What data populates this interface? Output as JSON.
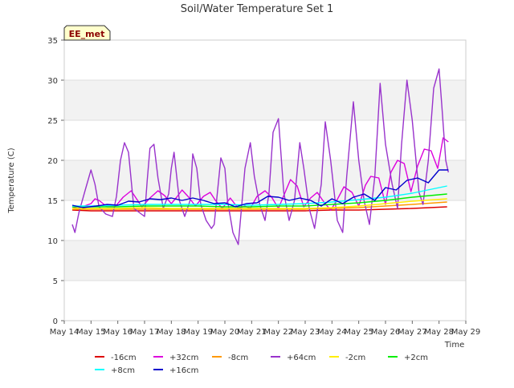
{
  "chart_data": {
    "type": "line",
    "title": "Soil/Water Temperature Set 1",
    "xlabel": "Time",
    "ylabel": "Temperature (C)",
    "station_label": "EE_met",
    "x_ticks": [
      "May 14",
      "May 15",
      "May 16",
      "May 17",
      "May 18",
      "May 19",
      "May 20",
      "May 21",
      "May 22",
      "May 23",
      "May 24",
      "May 25",
      "May 26",
      "May 27",
      "May 28",
      "May 29"
    ],
    "xlim": [
      0,
      15
    ],
    "ylim": [
      0,
      35
    ],
    "y_ticks": [
      0,
      5,
      10,
      15,
      20,
      25,
      30,
      35
    ],
    "grid": "horizontal banded",
    "legend_position": "bottom",
    "series": [
      {
        "name": "-16cm",
        "color": "#dd0000",
        "x": [
          0.3,
          1,
          2,
          3,
          4,
          5,
          6,
          7,
          8,
          9,
          10,
          11,
          12,
          13,
          14.3
        ],
        "y": [
          13.8,
          13.7,
          13.7,
          13.7,
          13.7,
          13.7,
          13.7,
          13.7,
          13.7,
          13.7,
          13.8,
          13.8,
          13.9,
          14.0,
          14.2
        ]
      },
      {
        "name": "+32cm",
        "color": "#dd00dd",
        "x": [
          0.3,
          0.5,
          0.75,
          1,
          1.15,
          1.3,
          1.6,
          1.9,
          2.2,
          2.5,
          2.7,
          2.9,
          3.2,
          3.5,
          3.75,
          4,
          4.2,
          4.4,
          4.65,
          4.9,
          5.2,
          5.45,
          5.65,
          5.9,
          6.2,
          6.5,
          6.75,
          6.95,
          7.2,
          7.5,
          7.75,
          8,
          8.2,
          8.45,
          8.7,
          8.95,
          9.2,
          9.45,
          9.7,
          9.95,
          10.15,
          10.45,
          10.75,
          11,
          11.25,
          11.45,
          11.75,
          12,
          12.2,
          12.45,
          12.7,
          12.95,
          13.2,
          13.45,
          13.7,
          13.95,
          14.15,
          14.35
        ],
        "y": [
          14.2,
          14.0,
          14.3,
          14.6,
          15.2,
          15.0,
          14.2,
          14.2,
          15.4,
          16.2,
          15.2,
          14.2,
          15.3,
          16.2,
          15.6,
          14.6,
          15.4,
          16.3,
          15.4,
          14.3,
          15.5,
          16.0,
          15.0,
          14.0,
          15.3,
          14.0,
          14.3,
          14.0,
          15.5,
          16.2,
          15.4,
          14.0,
          15.6,
          17.6,
          16.8,
          14.2,
          15.3,
          16.0,
          14.8,
          13.8,
          14.8,
          16.7,
          16.0,
          14.3,
          16.9,
          18.0,
          17.8,
          14.5,
          18.5,
          20.0,
          19.6,
          16.1,
          19.3,
          21.4,
          21.2,
          19.0,
          22.8,
          22.3
        ]
      },
      {
        "name": "-8cm",
        "color": "#ff9900",
        "x": [
          0.3,
          1,
          2,
          3,
          4,
          5,
          6,
          7,
          8,
          9,
          10,
          11,
          12,
          13,
          14.3
        ],
        "y": [
          13.9,
          13.9,
          13.9,
          13.9,
          13.9,
          13.9,
          13.9,
          13.9,
          13.9,
          13.9,
          14.0,
          14.1,
          14.3,
          14.5,
          14.8
        ]
      },
      {
        "name": "+64cm",
        "color": "#9933cc",
        "x": [
          0.3,
          0.4,
          0.55,
          0.8,
          1,
          1.15,
          1.3,
          1.55,
          1.8,
          1.95,
          2.1,
          2.25,
          2.4,
          2.6,
          2.8,
          3.0,
          3.1,
          3.2,
          3.35,
          3.5,
          3.7,
          3.9,
          4.0,
          4.1,
          4.3,
          4.5,
          4.7,
          4.8,
          4.95,
          5.1,
          5.3,
          5.5,
          5.6,
          5.75,
          5.85,
          6.0,
          6.1,
          6.3,
          6.5,
          6.75,
          6.95,
          7.1,
          7.3,
          7.5,
          7.65,
          7.8,
          8.0,
          8.2,
          8.4,
          8.6,
          8.8,
          8.95,
          9.15,
          9.35,
          9.6,
          9.75,
          9.95,
          10.2,
          10.4,
          10.55,
          10.8,
          11.0,
          11.2,
          11.4,
          11.6,
          11.8,
          12.0,
          12.25,
          12.45,
          12.6,
          12.8,
          13.0,
          13.25,
          13.4,
          13.6,
          13.8,
          14.0,
          14.1,
          14.25,
          14.35
        ],
        "y": [
          12.0,
          11.0,
          13.5,
          16.5,
          18.8,
          17.0,
          14.2,
          13.3,
          13.0,
          15.5,
          20.0,
          22.2,
          21.0,
          14.0,
          13.5,
          13.0,
          17.5,
          21.5,
          22.0,
          17.8,
          14.0,
          15.8,
          19.0,
          21.0,
          15.0,
          13.0,
          15.0,
          20.8,
          19.0,
          14.5,
          12.5,
          11.5,
          12.0,
          17.0,
          20.3,
          19.0,
          15.0,
          11.0,
          9.5,
          19.0,
          22.2,
          18.0,
          14.5,
          12.5,
          16.0,
          23.5,
          25.2,
          16.0,
          12.5,
          15.0,
          22.2,
          19.0,
          14.0,
          11.5,
          17.0,
          24.8,
          20.0,
          12.5,
          11.0,
          18.0,
          27.3,
          20.0,
          15.0,
          12.0,
          18.0,
          29.6,
          22.0,
          17.0,
          14.0,
          22.0,
          30.0,
          25.0,
          16.0,
          14.5,
          20.0,
          29.0,
          31.4,
          27.0,
          20.0,
          18.5
        ]
      },
      {
        "name": "-2cm",
        "color": "#ffee00",
        "x": [
          0.3,
          1,
          2,
          3,
          4,
          5,
          6,
          7,
          8,
          9,
          10,
          11,
          12,
          13,
          14.3
        ],
        "y": [
          14.0,
          14.0,
          14.0,
          14.1,
          14.0,
          14.0,
          14.0,
          14.0,
          14.0,
          14.0,
          14.1,
          14.3,
          14.6,
          14.9,
          15.2
        ]
      },
      {
        "name": "+2cm",
        "color": "#00ee00",
        "x": [
          0.3,
          1,
          2,
          3,
          4,
          5,
          6,
          7,
          8,
          9,
          10,
          11,
          12,
          13,
          14.3
        ],
        "y": [
          14.2,
          14.2,
          14.2,
          14.3,
          14.3,
          14.3,
          14.2,
          14.2,
          14.3,
          14.3,
          14.5,
          14.7,
          15.0,
          15.4,
          15.8
        ]
      },
      {
        "name": "+8cm",
        "color": "#00ffff",
        "x": [
          0.3,
          1,
          2,
          3,
          4,
          5,
          6,
          7,
          8,
          9,
          10,
          11,
          12,
          13,
          14.3
        ],
        "y": [
          14.3,
          14.3,
          14.4,
          14.5,
          14.5,
          14.5,
          14.5,
          14.4,
          14.5,
          14.6,
          14.8,
          15.1,
          15.4,
          15.9,
          16.8
        ]
      },
      {
        "name": "+16cm",
        "color": "#0000cc",
        "x": [
          0.3,
          0.7,
          1.2,
          1.6,
          2.0,
          2.4,
          2.8,
          3.2,
          3.6,
          4.0,
          4.4,
          4.8,
          5.2,
          5.6,
          6.0,
          6.4,
          6.8,
          7.2,
          7.6,
          8.0,
          8.4,
          8.8,
          9.2,
          9.6,
          10.0,
          10.4,
          10.8,
          11.2,
          11.6,
          12.0,
          12.4,
          12.8,
          13.2,
          13.6,
          14.0,
          14.35
        ],
        "y": [
          14.4,
          14.1,
          14.3,
          14.5,
          14.4,
          14.9,
          14.8,
          15.2,
          15.1,
          15.3,
          15.0,
          15.3,
          15.0,
          14.6,
          14.7,
          14.2,
          14.6,
          14.7,
          15.5,
          15.4,
          15.0,
          15.3,
          15.0,
          14.3,
          15.2,
          14.6,
          15.4,
          15.8,
          15.0,
          16.6,
          16.3,
          17.5,
          17.8,
          17.2,
          18.8,
          18.8
        ]
      }
    ]
  }
}
